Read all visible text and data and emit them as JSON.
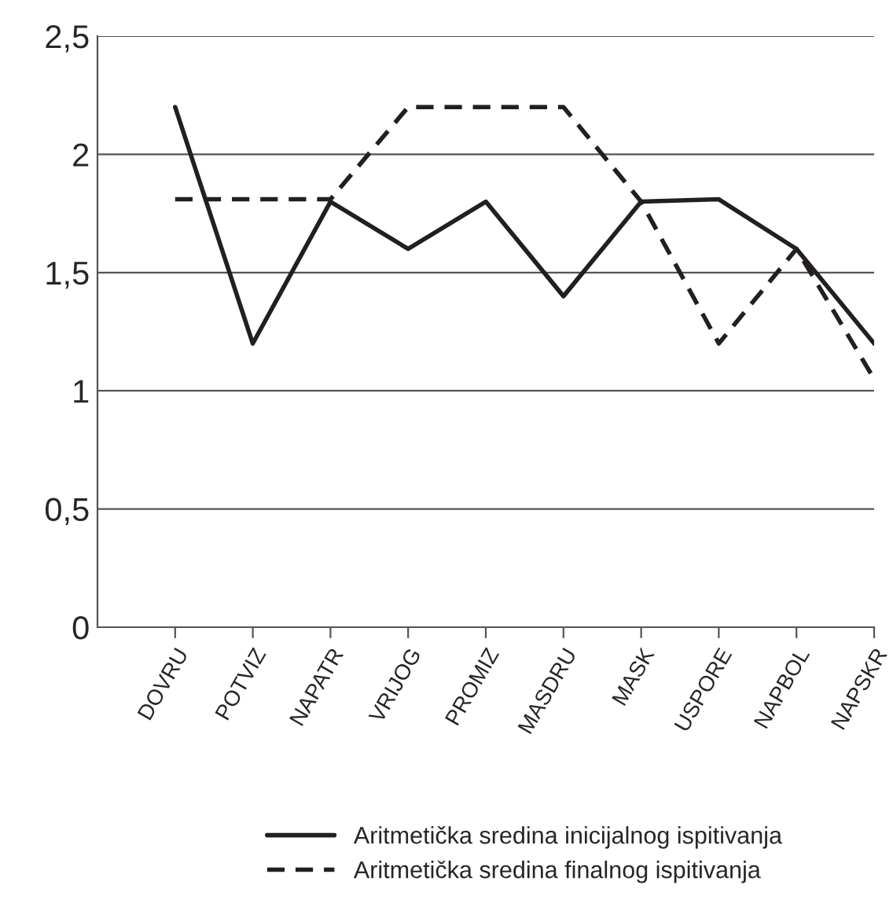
{
  "chart_data": {
    "type": "line",
    "categories": [
      "DOVRU",
      "POTVIZ",
      "NAPATR",
      "VRIJOG",
      "PROMIZ",
      "MASDRU",
      "MASK",
      "USPORE",
      "NAPBOL",
      "NAPSKR"
    ],
    "series": [
      {
        "name": "Aritmetička sredina inicijalnog ispitivanja",
        "color": "#231f20",
        "line_style": "solid",
        "values": [
          2.2,
          1.2,
          1.8,
          1.6,
          1.8,
          1.4,
          1.8,
          1.81,
          1.6,
          1.2
        ]
      },
      {
        "name": "Aritmetička sredina finalnog ispitivanja",
        "color": "#231f20",
        "line_style": "dashed",
        "values": [
          1.81,
          1.81,
          1.81,
          2.2,
          2.2,
          2.2,
          1.8,
          1.2,
          1.6,
          1.05
        ]
      }
    ],
    "ylim": [
      0,
      2.5
    ],
    "yticks": [
      {
        "value": 0,
        "label": "0"
      },
      {
        "value": 0.5,
        "label": "0,5"
      },
      {
        "value": 1,
        "label": "1"
      },
      {
        "value": 1.5,
        "label": "1,5"
      },
      {
        "value": 2,
        "label": "2"
      },
      {
        "value": 2.5,
        "label": "2,5"
      }
    ],
    "grid": "y",
    "legend": "bottom",
    "marker": "none"
  }
}
